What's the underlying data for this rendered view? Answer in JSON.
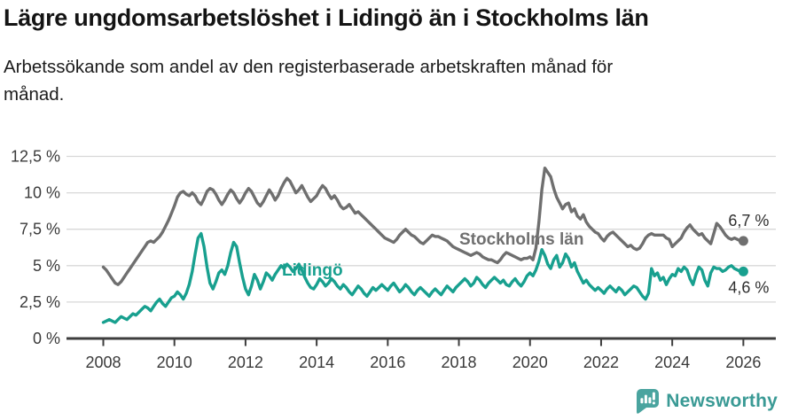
{
  "chart_data": {
    "type": "line",
    "title": "Lägre ungdomsarbetslöshet i Lidingö än i Stockholms län",
    "subtitle": "Arbetssökande som andel av den registerbaserade arbetskraften månad för\nmånad.",
    "x_unit": "month",
    "x_start_year": 2008,
    "x_end_year": 2026,
    "x_ticks": [
      2008,
      2010,
      2012,
      2014,
      2016,
      2018,
      2020,
      2022,
      2024,
      2026
    ],
    "ylim": [
      0,
      12.5
    ],
    "grid": "horizontal",
    "y_ticks": [
      {
        "value": 0,
        "label": "0 %"
      },
      {
        "value": 2.5,
        "label": "2,5 %"
      },
      {
        "value": 5,
        "label": "5 %"
      },
      {
        "value": 7.5,
        "label": "7,5 %"
      },
      {
        "value": 10,
        "label": "10 %"
      },
      {
        "value": 12.5,
        "label": "12,5 %"
      }
    ],
    "series": [
      {
        "name": "Stockholms län",
        "color": "#6f6f6f",
        "end_value_label": "6,7 %",
        "values": [
          4.9,
          4.7,
          4.4,
          4.1,
          3.8,
          3.7,
          3.9,
          4.2,
          4.5,
          4.8,
          5.1,
          5.4,
          5.7,
          6.0,
          6.3,
          6.6,
          6.7,
          6.6,
          6.8,
          7.0,
          7.3,
          7.7,
          8.1,
          8.6,
          9.1,
          9.7,
          10.0,
          10.1,
          9.9,
          9.8,
          10.0,
          9.8,
          9.4,
          9.2,
          9.6,
          10.1,
          10.3,
          10.2,
          9.9,
          9.5,
          9.2,
          9.5,
          9.9,
          10.2,
          10.0,
          9.6,
          9.3,
          9.6,
          10.0,
          10.3,
          10.1,
          9.7,
          9.3,
          9.1,
          9.4,
          9.8,
          10.2,
          9.9,
          9.5,
          9.8,
          10.3,
          10.7,
          11.0,
          10.8,
          10.4,
          10.0,
          10.2,
          10.5,
          10.1,
          9.7,
          9.4,
          9.6,
          9.8,
          10.2,
          10.5,
          10.3,
          9.9,
          9.6,
          9.8,
          9.5,
          9.1,
          8.9,
          9.0,
          9.2,
          8.9,
          8.6,
          8.7,
          8.5,
          8.3,
          8.1,
          7.9,
          7.7,
          7.5,
          7.3,
          7.1,
          6.9,
          6.8,
          6.7,
          6.6,
          6.8,
          7.1,
          7.3,
          7.5,
          7.3,
          7.1,
          7.0,
          6.8,
          6.6,
          6.5,
          6.7,
          6.9,
          7.1,
          7.0,
          7.0,
          6.9,
          6.8,
          6.7,
          6.5,
          6.3,
          6.2,
          6.1,
          6.0,
          5.9,
          5.8,
          5.7,
          5.8,
          5.9,
          5.8,
          5.6,
          5.5,
          5.4,
          5.4,
          5.3,
          5.2,
          5.4,
          5.7,
          5.9,
          5.8,
          5.7,
          5.6,
          5.5,
          5.4,
          5.5,
          5.5,
          5.6,
          5.4,
          6.2,
          8.0,
          10.2,
          11.7,
          11.4,
          11.1,
          10.3,
          9.7,
          9.3,
          8.9,
          9.2,
          9.3,
          8.7,
          8.9,
          8.4,
          8.2,
          8.5,
          8.0,
          7.7,
          7.5,
          7.3,
          7.2,
          6.9,
          6.7,
          7.0,
          7.2,
          7.3,
          7.1,
          6.9,
          6.7,
          6.5,
          6.3,
          6.4,
          6.2,
          6.1,
          6.2,
          6.5,
          6.9,
          7.1,
          7.2,
          7.1,
          7.1,
          7.1,
          7.1,
          6.9,
          6.8,
          6.3,
          6.5,
          6.7,
          6.9,
          7.3,
          7.6,
          7.8,
          7.5,
          7.3,
          7.1,
          7.2,
          6.9,
          6.7,
          6.5,
          7.2,
          7.9,
          7.7,
          7.4,
          7.1,
          6.9,
          6.8,
          6.9,
          6.8,
          6.7,
          6.7
        ]
      },
      {
        "name": "Lidingö",
        "color": "#18a08f",
        "end_value_label": "4,6 %",
        "values": [
          1.1,
          1.2,
          1.3,
          1.2,
          1.1,
          1.3,
          1.5,
          1.4,
          1.3,
          1.5,
          1.7,
          1.6,
          1.8,
          2.0,
          2.2,
          2.1,
          1.9,
          2.2,
          2.5,
          2.7,
          2.4,
          2.2,
          2.5,
          2.8,
          2.9,
          3.2,
          3.0,
          2.7,
          3.1,
          3.7,
          4.6,
          5.8,
          6.9,
          7.2,
          6.3,
          4.9,
          3.8,
          3.4,
          3.9,
          4.5,
          4.7,
          4.4,
          5.0,
          5.9,
          6.6,
          6.3,
          5.2,
          4.2,
          3.4,
          3.0,
          3.6,
          4.4,
          4.0,
          3.4,
          3.9,
          4.5,
          4.3,
          4.0,
          4.4,
          4.7,
          5.0,
          4.8,
          5.1,
          4.9,
          4.6,
          4.8,
          5.1,
          4.7,
          4.2,
          3.8,
          3.5,
          3.4,
          3.7,
          4.1,
          3.9,
          3.6,
          3.8,
          4.1,
          3.9,
          3.6,
          3.4,
          3.7,
          3.5,
          3.2,
          3.0,
          3.3,
          3.6,
          3.4,
          3.1,
          2.9,
          3.2,
          3.5,
          3.3,
          3.5,
          3.7,
          3.5,
          3.3,
          3.6,
          3.8,
          3.5,
          3.2,
          3.4,
          3.7,
          3.5,
          3.2,
          3.0,
          3.3,
          3.5,
          3.3,
          3.1,
          2.9,
          3.2,
          3.4,
          3.2,
          3.0,
          3.3,
          3.6,
          3.4,
          3.2,
          3.5,
          3.7,
          3.9,
          4.1,
          3.9,
          3.6,
          3.8,
          4.2,
          4.0,
          3.7,
          3.5,
          3.8,
          4.0,
          4.2,
          4.0,
          3.8,
          4.0,
          3.7,
          3.6,
          3.9,
          4.1,
          3.8,
          3.6,
          3.9,
          4.3,
          4.5,
          4.3,
          4.7,
          5.3,
          6.1,
          5.7,
          5.1,
          4.8,
          5.4,
          5.7,
          4.9,
          5.2,
          5.8,
          5.5,
          4.9,
          5.2,
          4.6,
          4.2,
          3.8,
          4.0,
          3.7,
          3.5,
          3.3,
          3.5,
          3.3,
          3.1,
          3.4,
          3.6,
          3.4,
          3.2,
          3.5,
          3.3,
          3.0,
          3.2,
          3.4,
          3.6,
          3.5,
          3.2,
          2.9,
          2.7,
          3.1,
          4.8,
          4.3,
          4.5,
          4.0,
          4.2,
          3.7,
          4.1,
          4.4,
          4.3,
          4.8,
          4.6,
          4.9,
          4.7,
          4.1,
          3.7,
          4.4,
          4.9,
          4.7,
          4.0,
          3.6,
          4.5,
          4.9,
          4.8,
          4.8,
          4.6,
          4.7,
          4.9,
          5.0,
          4.8,
          4.7,
          4.6,
          4.6
        ]
      }
    ]
  },
  "footer": {
    "brand": "Newsworthy",
    "brand_color": "#3a9a95",
    "logo_color": "#4aa49f"
  }
}
